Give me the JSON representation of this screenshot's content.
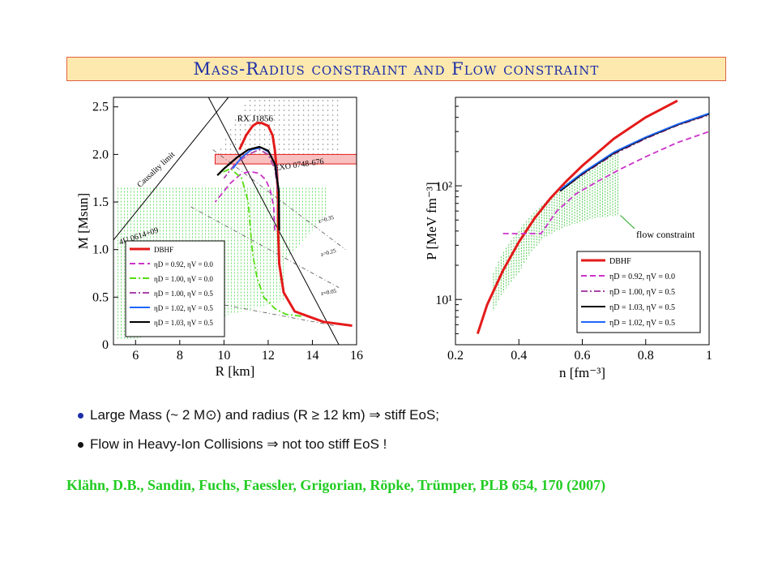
{
  "title": "Mass-Radius constraint and Flow constraint",
  "bullets": [
    {
      "text": "Large Mass (~ 2 M⊙) and radius (R ≥ 12 km) ⇒ stiff EoS;",
      "dot_color": "#1c2ea8"
    },
    {
      "text": "Flow in Heavy-Ion Collisions ⇒ not too stiff EoS !",
      "dot_color": "#111111"
    }
  ],
  "citation": "Klähn, D.B., Sandin, Fuchs, Faessler, Grigorian, Röpke, Trümper, PLB 654, 170 (2007)",
  "chart_data": [
    {
      "type": "line",
      "xlabel": "R [km]",
      "ylabel": "M [Msun]",
      "xlim": [
        5,
        16
      ],
      "ylim": [
        0,
        2.6
      ],
      "xticks": [
        "6",
        "8",
        "10",
        "12",
        "14",
        "16"
      ],
      "yticks": [
        "0",
        "0.5",
        "1.0",
        "1.5",
        "2.0",
        "2.5"
      ],
      "annotations": [
        "RX J1856",
        "EXO 0748-676",
        "4U 0614+09",
        "Causality limit",
        "z=0.35",
        "z=0.25",
        "z=0.05"
      ],
      "legend_position": "bottom-left",
      "series": [
        {
          "name": "DBHF",
          "color": "#e41a1a",
          "style": "solid",
          "x": [
            15.8,
            14.5,
            13.2,
            12.7,
            12.5,
            12.45,
            12.45,
            12.4,
            12.3,
            12.2,
            12.0,
            11.7,
            11.5,
            11.3,
            11.0,
            10.7
          ],
          "y": [
            0.2,
            0.24,
            0.35,
            0.55,
            0.85,
            1.2,
            1.5,
            1.8,
            2.05,
            2.2,
            2.3,
            2.33,
            2.33,
            2.3,
            2.2,
            2.05
          ]
        },
        {
          "name": "ηD = 0.92, ηV = 0.0",
          "color": "#cc33cc",
          "style": "dash",
          "x": [
            12.3,
            12.25,
            12.1,
            11.9,
            11.6,
            11.2,
            10.8,
            10.3,
            9.6
          ],
          "y": [
            1.2,
            1.45,
            1.62,
            1.73,
            1.8,
            1.82,
            1.8,
            1.7,
            1.5
          ]
        },
        {
          "name": "ηD = 1.00, ηV = 0.0",
          "color": "#55dd11",
          "style": "dashdot",
          "x": [
            13.5,
            12.8,
            12.3,
            11.8,
            11.5,
            11.3,
            11.2,
            11.1,
            10.8,
            10.3,
            9.8
          ],
          "y": [
            0.3,
            0.32,
            0.38,
            0.5,
            0.7,
            0.95,
            1.2,
            1.5,
            1.75,
            1.85,
            1.8
          ]
        },
        {
          "name": "ηD = 1.00, ηV = 0.5",
          "color": "#aa44aa",
          "style": "dashdot",
          "x": [
            12.5,
            12.45,
            12.3,
            12.0,
            11.6,
            11.1,
            10.5,
            10.0
          ],
          "y": [
            1.2,
            1.6,
            1.85,
            2.0,
            2.05,
            2.0,
            1.9,
            1.75
          ]
        },
        {
          "name": "ηD = 1.02, ηV = 0.5",
          "color": "#1f66ff",
          "style": "solid",
          "x": [
            12.5,
            12.48,
            12.35,
            12.05,
            11.7,
            11.25,
            10.8,
            10.4
          ],
          "y": [
            1.2,
            1.6,
            1.88,
            2.02,
            2.07,
            2.05,
            1.97,
            1.85
          ]
        },
        {
          "name": "ηD = 1.03, ηV = 0.5",
          "color": "#000000",
          "style": "solid",
          "x": [
            12.5,
            12.48,
            12.3,
            12.0,
            11.6,
            11.1,
            10.6,
            10.0,
            9.7
          ],
          "y": [
            1.2,
            1.62,
            1.9,
            2.04,
            2.08,
            2.05,
            1.97,
            1.85,
            1.78
          ]
        }
      ]
    },
    {
      "type": "line",
      "xlabel": "n [fm⁻³]",
      "ylabel": "P [MeV fm⁻³]",
      "xlim": [
        0.2,
        1.0
      ],
      "ylim": [
        4,
        600
      ],
      "yscale": "log",
      "xticks": [
        "0.2",
        "0.4",
        "0.6",
        "0.8",
        "1"
      ],
      "yticks": [
        "10¹",
        "10²"
      ],
      "annotations": [
        "flow constraint"
      ],
      "legend_position": "bottom-right",
      "flow_region": {
        "n": [
          0.32,
          0.4,
          0.48,
          0.56,
          0.64,
          0.72
        ],
        "p_low": [
          8,
          17,
          35,
          45,
          52,
          55
        ],
        "p_high": [
          17,
          40,
          70,
          110,
          150,
          200
        ]
      },
      "series": [
        {
          "name": "DBHF",
          "color": "#e41a1a",
          "style": "solid",
          "x": [
            0.27,
            0.3,
            0.35,
            0.4,
            0.45,
            0.5,
            0.55,
            0.6,
            0.7,
            0.8,
            0.9
          ],
          "y": [
            5,
            9,
            18,
            32,
            52,
            78,
            110,
            150,
            260,
            400,
            560
          ]
        },
        {
          "name": "ηD = 0.92, ηV = 0.0",
          "color": "#cc33cc",
          "style": "dash",
          "x": [
            0.35,
            0.42,
            0.47,
            0.52,
            0.58,
            0.65,
            0.72,
            0.8,
            0.9,
            1.0
          ],
          "y": [
            38,
            38,
            38,
            60,
            85,
            110,
            140,
            180,
            240,
            300
          ]
        },
        {
          "name": "ηD = 1.00, ηV = 0.5",
          "color": "#aa44aa",
          "style": "dashdot",
          "x": [
            0.53,
            0.6,
            0.7,
            0.8,
            0.9,
            1.0
          ],
          "y": [
            90,
            125,
            190,
            260,
            340,
            420
          ]
        },
        {
          "name": "ηD = 1.03, ηV = 0.5",
          "color": "#000000",
          "style": "solid",
          "x": [
            0.53,
            0.6,
            0.7,
            0.8,
            0.9,
            1.0
          ],
          "y": [
            90,
            128,
            195,
            265,
            345,
            430
          ]
        },
        {
          "name": "ηD = 1.02, ηV = 0.5",
          "color": "#1f66ff",
          "style": "solid",
          "x": [
            0.53,
            0.6,
            0.7,
            0.8,
            0.9,
            1.0
          ],
          "y": [
            92,
            130,
            198,
            268,
            348,
            434
          ]
        }
      ]
    }
  ]
}
